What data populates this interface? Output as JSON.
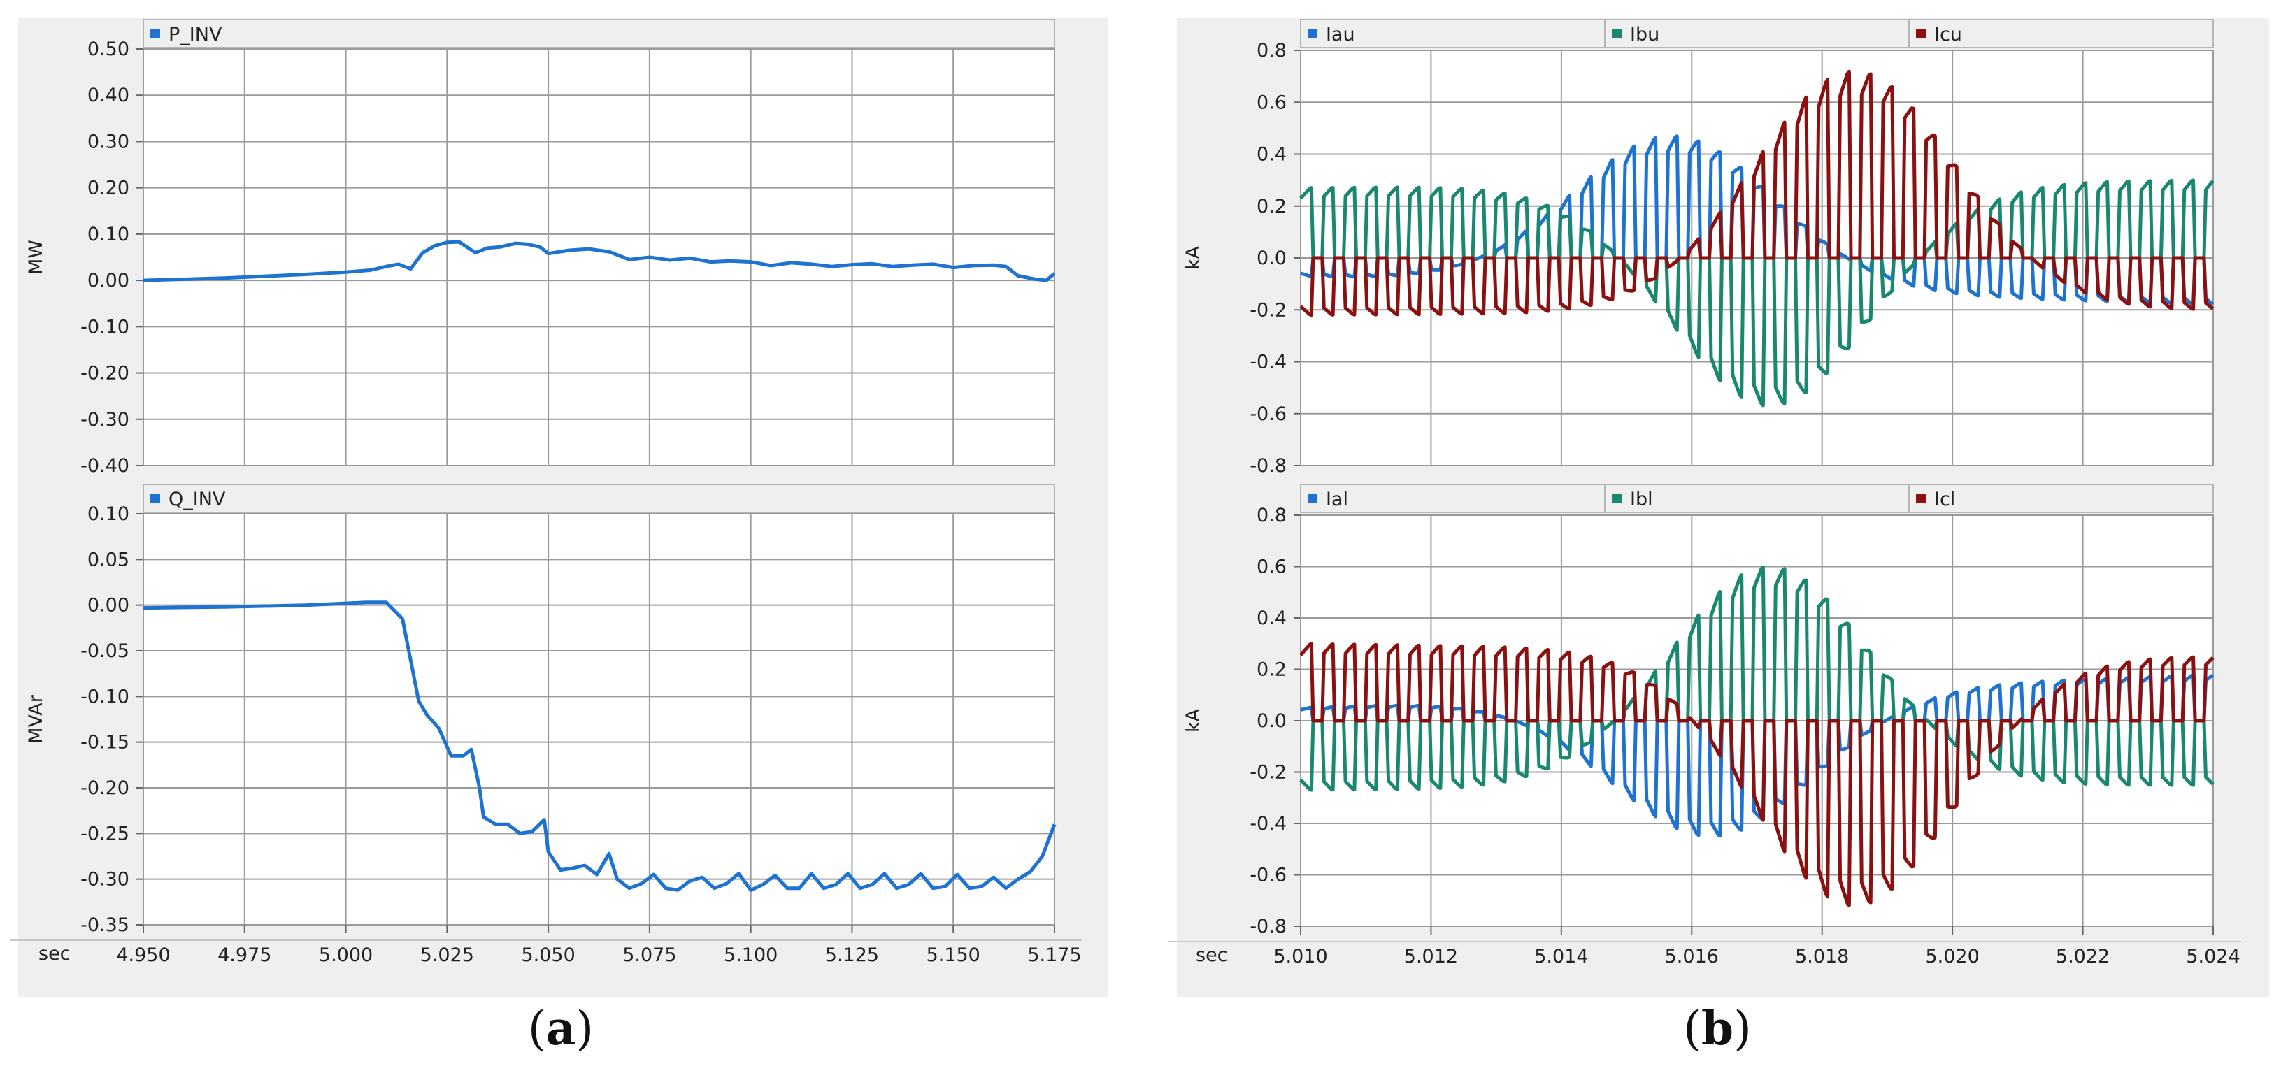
{
  "figure": {
    "caption_a_letter": "a",
    "caption_b_letter": "b"
  },
  "chart_data": [
    {
      "id": "p_inv",
      "type": "line",
      "ylabel": "MW",
      "xlabel": "sec",
      "xlim": [
        4.95,
        5.175
      ],
      "ylim": [
        -0.4,
        0.5
      ],
      "xticks": [
        "4.950",
        "4.975",
        "5.000",
        "5.025",
        "5.050",
        "5.075",
        "5.100",
        "5.125",
        "5.150",
        "5.175"
      ],
      "yticks": [
        "0.50",
        "0.40",
        "0.30",
        "0.20",
        "0.10",
        "0.00",
        "-0.10",
        "-0.20",
        "-0.30",
        "-0.40"
      ],
      "grid": true,
      "legend_position": "top",
      "series": [
        {
          "name": "P_INV",
          "color": "#1f73d0",
          "x": [
            4.95,
            4.97,
            4.99,
            5.0,
            5.006,
            5.01,
            5.013,
            5.016,
            5.019,
            5.022,
            5.025,
            5.028,
            5.032,
            5.035,
            5.038,
            5.042,
            5.045,
            5.048,
            5.05,
            5.055,
            5.06,
            5.065,
            5.07,
            5.075,
            5.08,
            5.085,
            5.09,
            5.095,
            5.1,
            5.105,
            5.11,
            5.115,
            5.12,
            5.125,
            5.13,
            5.135,
            5.14,
            5.145,
            5.15,
            5.155,
            5.16,
            5.163,
            5.166,
            5.17,
            5.173,
            5.175
          ],
          "values": [
            0.0,
            0.005,
            0.013,
            0.018,
            0.022,
            0.03,
            0.035,
            0.025,
            0.06,
            0.075,
            0.082,
            0.083,
            0.06,
            0.07,
            0.072,
            0.08,
            0.078,
            0.072,
            0.058,
            0.065,
            0.068,
            0.062,
            0.045,
            0.05,
            0.044,
            0.048,
            0.04,
            0.042,
            0.04,
            0.032,
            0.038,
            0.035,
            0.03,
            0.034,
            0.036,
            0.03,
            0.033,
            0.035,
            0.028,
            0.032,
            0.033,
            0.03,
            0.01,
            0.003,
            0.0,
            0.015
          ]
        }
      ]
    },
    {
      "id": "q_inv",
      "type": "line",
      "ylabel": "MVAr",
      "xlabel": "sec",
      "xlim": [
        4.95,
        5.175
      ],
      "ylim": [
        -0.35,
        0.1
      ],
      "xticks": [
        "4.950",
        "4.975",
        "5.000",
        "5.025",
        "5.050",
        "5.075",
        "5.100",
        "5.125",
        "5.150",
        "5.175"
      ],
      "yticks": [
        "0.10",
        "0.05",
        "0.00",
        "-0.05",
        "-0.10",
        "-0.15",
        "-0.20",
        "-0.25",
        "-0.30",
        "-0.35"
      ],
      "grid": true,
      "legend_position": "top",
      "series": [
        {
          "name": "Q_INV",
          "color": "#1f73d0",
          "x": [
            4.95,
            4.97,
            4.99,
            5.0,
            5.005,
            5.01,
            5.014,
            5.016,
            5.018,
            5.02,
            5.023,
            5.026,
            5.029,
            5.031,
            5.033,
            5.034,
            5.037,
            5.04,
            5.043,
            5.046,
            5.049,
            5.05,
            5.053,
            5.056,
            5.059,
            5.062,
            5.065,
            5.067,
            5.07,
            5.073,
            5.076,
            5.079,
            5.082,
            5.085,
            5.088,
            5.091,
            5.094,
            5.097,
            5.1,
            5.103,
            5.106,
            5.109,
            5.112,
            5.115,
            5.118,
            5.121,
            5.124,
            5.127,
            5.13,
            5.133,
            5.136,
            5.139,
            5.142,
            5.145,
            5.148,
            5.151,
            5.154,
            5.157,
            5.16,
            5.163,
            5.166,
            5.169,
            5.172,
            5.175
          ],
          "values": [
            -0.003,
            -0.002,
            0.0,
            0.002,
            0.003,
            0.003,
            -0.015,
            -0.06,
            -0.105,
            -0.12,
            -0.135,
            -0.165,
            -0.165,
            -0.158,
            -0.2,
            -0.232,
            -0.24,
            -0.24,
            -0.25,
            -0.248,
            -0.235,
            -0.27,
            -0.29,
            -0.288,
            -0.285,
            -0.295,
            -0.272,
            -0.3,
            -0.31,
            -0.305,
            -0.295,
            -0.31,
            -0.312,
            -0.302,
            -0.298,
            -0.31,
            -0.305,
            -0.294,
            -0.312,
            -0.306,
            -0.296,
            -0.31,
            -0.31,
            -0.294,
            -0.31,
            -0.306,
            -0.294,
            -0.31,
            -0.306,
            -0.294,
            -0.31,
            -0.306,
            -0.294,
            -0.31,
            -0.308,
            -0.295,
            -0.31,
            -0.308,
            -0.298,
            -0.31,
            -0.3,
            -0.292,
            -0.275,
            -0.24
          ]
        }
      ]
    },
    {
      "id": "upper_currents",
      "type": "line",
      "ylabel": "kA",
      "xlim": [
        5.01,
        5.024
      ],
      "ylim": [
        -0.8,
        0.8
      ],
      "xticks": [
        "5.010",
        "5.012",
        "5.014",
        "5.016",
        "5.018",
        "5.020",
        "5.022",
        "5.024"
      ],
      "yticks": [
        "0.8",
        "0.6",
        "0.4",
        "0.2",
        "0.0",
        "-0.2",
        "-0.4",
        "-0.6",
        "-0.8"
      ],
      "grid": true,
      "legend_position": "top",
      "series": [
        {
          "name": "Iau",
          "color": "#1f73d0",
          "start": -0.07,
          "peak": 0.47,
          "peak_t": 5.0157,
          "pulses": 2,
          "pol": 1,
          "end": -0.18
        },
        {
          "name": "Ibu",
          "color": "#1a8870",
          "start": 0.27,
          "peak": -0.57,
          "peak_t": 5.0172,
          "pulses": 2,
          "pol": -1,
          "end": 0.3
        },
        {
          "name": "Icu",
          "color": "#8b1010",
          "start": -0.22,
          "peak": 0.72,
          "peak_t": 5.0185,
          "pulses": 2,
          "pol": 1,
          "end": -0.2
        }
      ]
    },
    {
      "id": "lower_currents",
      "type": "line",
      "ylabel": "kA",
      "xlabel": "sec",
      "xlim": [
        5.01,
        5.024
      ],
      "ylim": [
        -0.8,
        0.8
      ],
      "xticks": [
        "5.010",
        "5.012",
        "5.014",
        "5.016",
        "5.018",
        "5.020",
        "5.022",
        "5.024"
      ],
      "yticks": [
        "0.8",
        "0.6",
        "0.4",
        "0.2",
        "0.0",
        "-0.2",
        "-0.4",
        "-0.6",
        "-0.8"
      ],
      "grid": true,
      "legend_position": "top",
      "series": [
        {
          "name": "Ial",
          "color": "#1f73d0",
          "start": 0.05,
          "peak": -0.45,
          "peak_t": 5.0163,
          "pulses": 2,
          "pol": -1,
          "end": 0.18
        },
        {
          "name": "Ibl",
          "color": "#1a8870",
          "start": -0.27,
          "peak": 0.6,
          "peak_t": 5.0172,
          "pulses": 2,
          "pol": 1,
          "end": -0.25
        },
        {
          "name": "Icl",
          "color": "#8b1010",
          "start": 0.3,
          "peak": -0.72,
          "peak_t": 5.0185,
          "pulses": 2,
          "pol": -1,
          "end": 0.25
        }
      ]
    }
  ]
}
